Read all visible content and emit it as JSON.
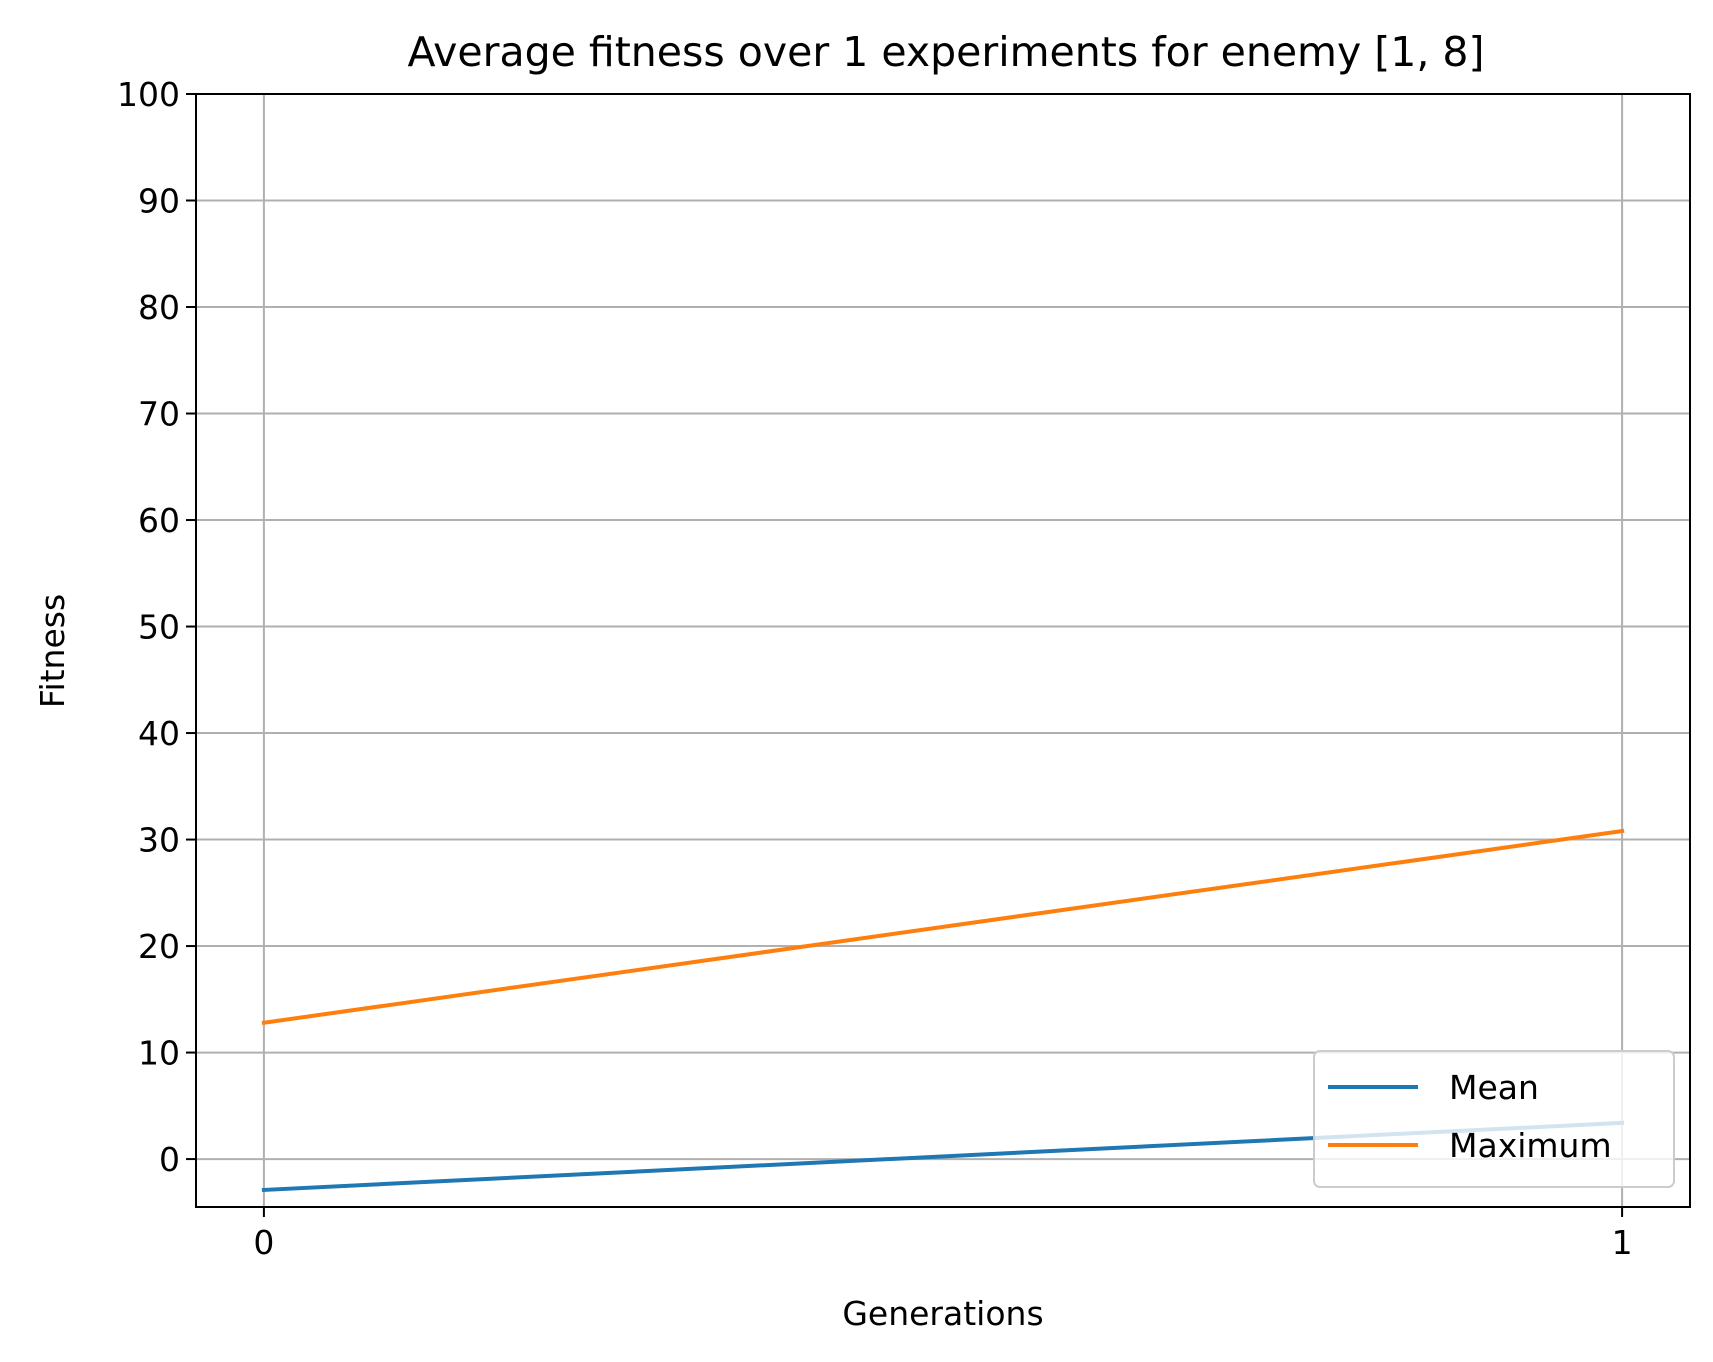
{
  "chart_data": {
    "type": "line",
    "title": "Average fitness over 1 experiments for enemy [1, 8]",
    "xlabel": "Generations",
    "ylabel": "Fitness",
    "x": [
      0,
      1
    ],
    "xticks": [
      0,
      1
    ],
    "xlim": [
      -0.05,
      1.05
    ],
    "ylim": [
      -4.5,
      100
    ],
    "yticks": [
      0,
      10,
      20,
      30,
      40,
      50,
      60,
      70,
      80,
      90,
      100
    ],
    "grid": true,
    "legend_position": "lower right",
    "series": [
      {
        "name": "Mean",
        "color": "#1f77b4",
        "values": [
          -2.9,
          3.4
        ]
      },
      {
        "name": "Maximum",
        "color": "#ff7f0e",
        "values": [
          12.8,
          30.8
        ]
      }
    ]
  }
}
